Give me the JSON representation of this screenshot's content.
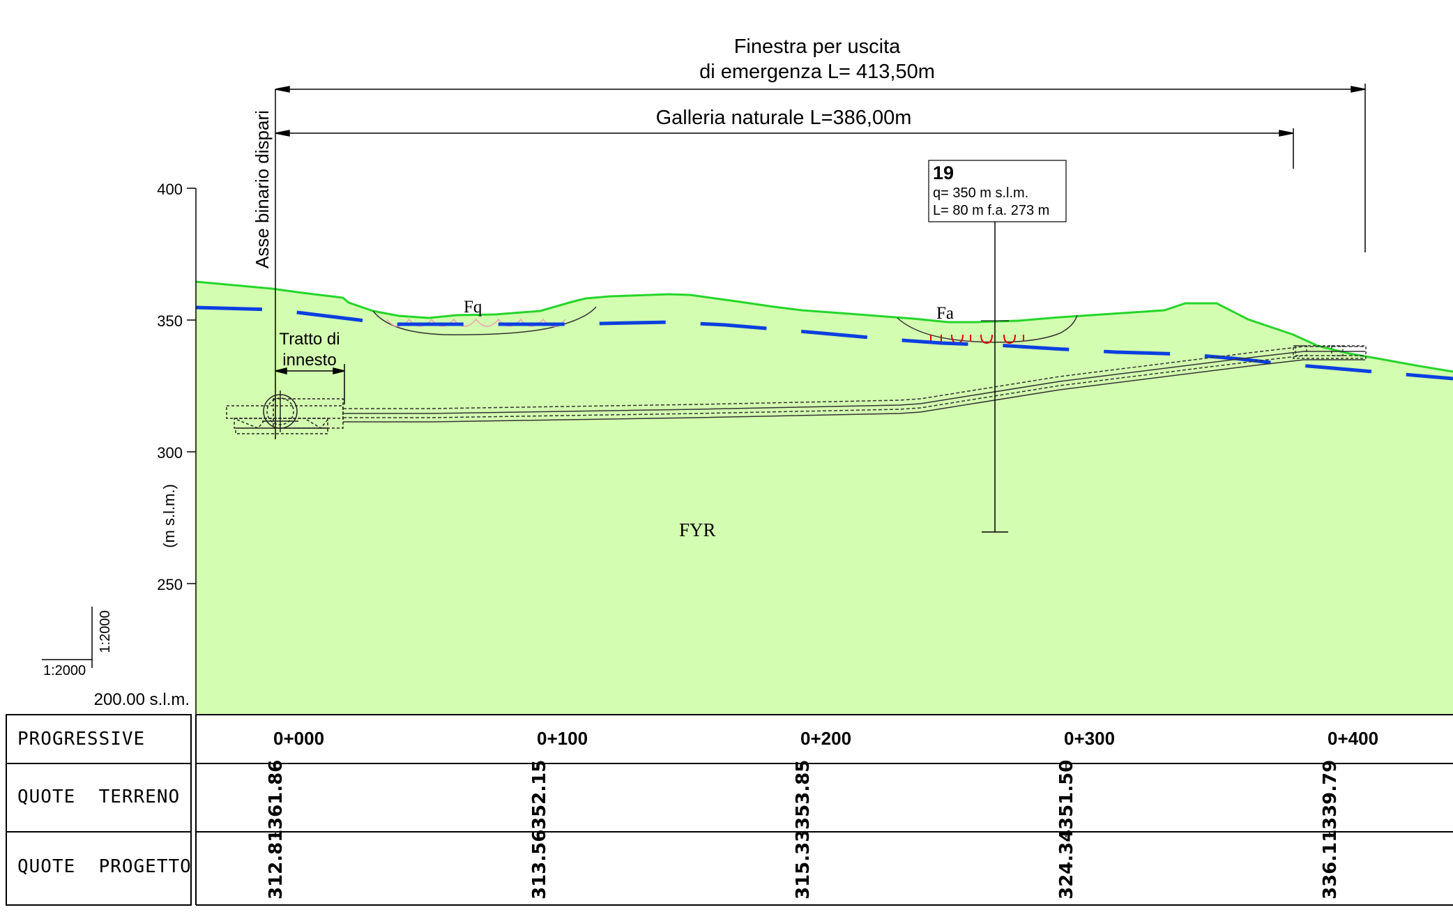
{
  "dimensions": {
    "emergency_exit_line1": "Finestra per uscita",
    "emergency_exit_line2": "di emergenza L= 413,50m",
    "natural_tunnel": "Galleria naturale L=386,00m",
    "connection_line1": "Tratto di",
    "connection_line2": "innesto",
    "track_axis": "Asse binario dispari"
  },
  "borehole": {
    "id": "19",
    "quota": "q= 350 m s.l.m.",
    "length": "L= 80 m f.a. 273 m"
  },
  "axis": {
    "label": "(m s.l.m.)",
    "ticks": [
      "400",
      "350",
      "300",
      "250"
    ],
    "datum": "200.00 s.l.m."
  },
  "scale": {
    "horizontal": "1:2000",
    "vertical": "1:2000"
  },
  "geology": {
    "fq": "Fq",
    "fa": "Fa",
    "fyr": "FYR"
  },
  "colors": {
    "ground_fill": "#d3fdb0",
    "ground_line": "#25d52a",
    "water_table": "#0a3fe0",
    "fa_symbols": "#dd0000",
    "fq_symbols": "#f0a0b8"
  },
  "table": {
    "row_labels": [
      "PROGRESSIVE",
      "QUOTE  TERRENO",
      "QUOTE  PROGETTO"
    ],
    "progressive": [
      "0+000",
      "0+100",
      "0+200",
      "0+300",
      "0+400"
    ],
    "quote_terreno": [
      "361.86",
      "352.15",
      "353.85",
      "351.50",
      "339.79"
    ],
    "quote_progetto": [
      "312.81",
      "313.56",
      "315.33",
      "324.34",
      "336.11"
    ]
  }
}
